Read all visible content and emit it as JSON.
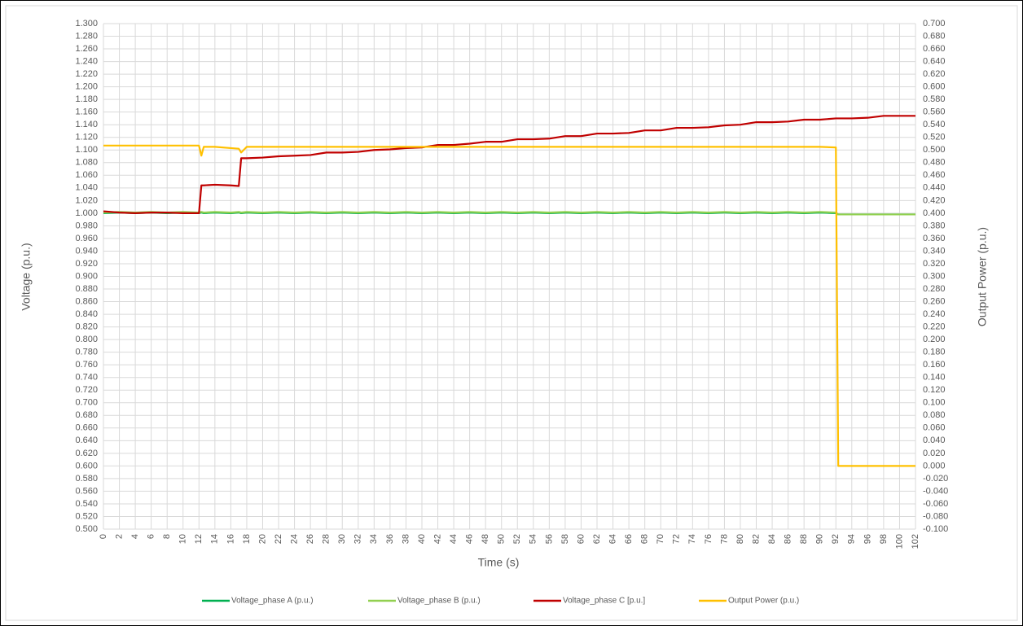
{
  "chart_data": {
    "type": "line",
    "xlabel": "Time (s)",
    "ylabel": "Voltage (p.u.)",
    "y2label": "Output Power (p.u.)",
    "grid": true,
    "legend": "bottom",
    "xlim": [
      0,
      102
    ],
    "xticks": [
      0,
      2,
      4,
      6,
      8,
      10,
      12,
      14,
      16,
      18,
      20,
      22,
      24,
      26,
      28,
      30,
      32,
      34,
      36,
      38,
      40,
      42,
      44,
      46,
      48,
      50,
      52,
      54,
      56,
      58,
      60,
      62,
      64,
      66,
      68,
      70,
      72,
      74,
      76,
      78,
      80,
      82,
      84,
      86,
      88,
      90,
      92,
      94,
      96,
      98,
      100,
      102
    ],
    "ylim": [
      0.5,
      1.3
    ],
    "yticks": [
      {
        "value": 0.5,
        "label": "0.500"
      },
      {
        "value": 0.52,
        "label": "0.520"
      },
      {
        "value": 0.54,
        "label": "0.540"
      },
      {
        "value": 0.56,
        "label": "0.560"
      },
      {
        "value": 0.58,
        "label": "0.580"
      },
      {
        "value": 0.6,
        "label": "0.600"
      },
      {
        "value": 0.62,
        "label": "0.620"
      },
      {
        "value": 0.64,
        "label": "0.640"
      },
      {
        "value": 0.66,
        "label": "0.660"
      },
      {
        "value": 0.68,
        "label": "0.680"
      },
      {
        "value": 0.7,
        "label": "0.700"
      },
      {
        "value": 0.72,
        "label": "0.720"
      },
      {
        "value": 0.74,
        "label": "0.740"
      },
      {
        "value": 0.76,
        "label": "0.760"
      },
      {
        "value": 0.78,
        "label": "0.780"
      },
      {
        "value": 0.8,
        "label": "0.800"
      },
      {
        "value": 0.82,
        "label": "0.820"
      },
      {
        "value": 0.84,
        "label": "0.840"
      },
      {
        "value": 0.86,
        "label": "0.860"
      },
      {
        "value": 0.88,
        "label": "0.880"
      },
      {
        "value": 0.9,
        "label": "0.900"
      },
      {
        "value": 0.92,
        "label": "0.920"
      },
      {
        "value": 0.94,
        "label": "0.940"
      },
      {
        "value": 0.96,
        "label": "0.960"
      },
      {
        "value": 0.98,
        "label": "0.980"
      },
      {
        "value": 1,
        "label": "1.000"
      },
      {
        "value": 1.02,
        "label": "1.020"
      },
      {
        "value": 1.04,
        "label": "1.040"
      },
      {
        "value": 1.06,
        "label": "1.060"
      },
      {
        "value": 1.08,
        "label": "1.080"
      },
      {
        "value": 1.1,
        "label": "1.100"
      },
      {
        "value": 1.12,
        "label": "1.120"
      },
      {
        "value": 1.14,
        "label": "1.140"
      },
      {
        "value": 1.16,
        "label": "1.160"
      },
      {
        "value": 1.18,
        "label": "1.180"
      },
      {
        "value": 1.2,
        "label": "1.200"
      },
      {
        "value": 1.22,
        "label": "1.220"
      },
      {
        "value": 1.24,
        "label": "1.240"
      },
      {
        "value": 1.26,
        "label": "1.260"
      },
      {
        "value": 1.28,
        "label": "1.280"
      },
      {
        "value": 1.3,
        "label": "1.300"
      }
    ],
    "y2lim": [
      -0.1,
      0.7
    ],
    "y2ticks": [
      {
        "value": -0.1,
        "label": "-0.100"
      },
      {
        "value": -0.08,
        "label": "-0.080"
      },
      {
        "value": -0.06,
        "label": "-0.060"
      },
      {
        "value": -0.04,
        "label": "-0.040"
      },
      {
        "value": -0.02,
        "label": "-0.020"
      },
      {
        "value": 0,
        "label": "0.000"
      },
      {
        "value": 0.02,
        "label": "0.020"
      },
      {
        "value": 0.04,
        "label": "0.040"
      },
      {
        "value": 0.06,
        "label": "0.060"
      },
      {
        "value": 0.08,
        "label": "0.080"
      },
      {
        "value": 0.1,
        "label": "0.100"
      },
      {
        "value": 0.12,
        "label": "0.120"
      },
      {
        "value": 0.14,
        "label": "0.140"
      },
      {
        "value": 0.16,
        "label": "0.160"
      },
      {
        "value": 0.18,
        "label": "0.180"
      },
      {
        "value": 0.2,
        "label": "0.200"
      },
      {
        "value": 0.22,
        "label": "0.220"
      },
      {
        "value": 0.24,
        "label": "0.240"
      },
      {
        "value": 0.26,
        "label": "0.260"
      },
      {
        "value": 0.28,
        "label": "0.280"
      },
      {
        "value": 0.3,
        "label": "0.300"
      },
      {
        "value": 0.32,
        "label": "0.320"
      },
      {
        "value": 0.34,
        "label": "0.340"
      },
      {
        "value": 0.36,
        "label": "0.360"
      },
      {
        "value": 0.38,
        "label": "0.380"
      },
      {
        "value": 0.4,
        "label": "0.400"
      },
      {
        "value": 0.42,
        "label": "0.420"
      },
      {
        "value": 0.44,
        "label": "0.440"
      },
      {
        "value": 0.46,
        "label": "0.460"
      },
      {
        "value": 0.48,
        "label": "0.480"
      },
      {
        "value": 0.5,
        "label": "0.500"
      },
      {
        "value": 0.52,
        "label": "0.520"
      },
      {
        "value": 0.54,
        "label": "0.540"
      },
      {
        "value": 0.56,
        "label": "0.560"
      },
      {
        "value": 0.58,
        "label": "0.580"
      },
      {
        "value": 0.6,
        "label": "0.600"
      },
      {
        "value": 0.62,
        "label": "0.620"
      },
      {
        "value": 0.64,
        "label": "0.640"
      },
      {
        "value": 0.66,
        "label": "0.660"
      },
      {
        "value": 0.68,
        "label": "0.680"
      },
      {
        "value": 0.7,
        "label": "0.700"
      }
    ],
    "x": [
      0,
      2,
      4,
      6,
      8,
      10,
      12,
      12.3,
      12.6,
      14,
      16,
      17,
      17.3,
      18,
      20,
      22,
      24,
      26,
      28,
      30,
      32,
      34,
      36,
      38,
      40,
      42,
      44,
      46,
      48,
      50,
      52,
      54,
      56,
      58,
      60,
      62,
      64,
      66,
      68,
      70,
      72,
      74,
      76,
      78,
      80,
      82,
      84,
      86,
      88,
      90,
      92,
      92.3,
      94,
      96,
      98,
      100,
      102
    ],
    "series": [
      {
        "name": "Voltage_phase A (p.u.)",
        "color": "#00b050",
        "values": [
          1.0,
          1.001,
          1.0,
          1.001,
          1.0,
          1.001,
          1.0,
          1.001,
          1.0,
          1.001,
          1.0,
          1.001,
          1.0,
          1.001,
          1.0,
          1.001,
          1.0,
          1.001,
          1.0,
          1.001,
          1.0,
          1.001,
          1.0,
          1.001,
          1.0,
          1.001,
          1.0,
          1.001,
          1.0,
          1.001,
          1.0,
          1.001,
          1.0,
          1.001,
          1.0,
          1.001,
          1.0,
          1.001,
          1.0,
          1.001,
          1.0,
          1.001,
          1.0,
          1.001,
          1.0,
          1.001,
          1.0,
          1.001,
          1.0,
          1.001,
          1.0,
          0.998,
          0.998,
          0.998,
          0.998,
          0.998,
          0.998
        ]
      },
      {
        "name": "Voltage_phase B (p.u.)",
        "color": "#92d050",
        "values": [
          1.001,
          1.002,
          1.001,
          1.002,
          1.001,
          1.002,
          1.001,
          1.002,
          1.001,
          1.002,
          1.001,
          1.002,
          1.001,
          1.002,
          1.001,
          1.002,
          1.001,
          1.002,
          1.001,
          1.002,
          1.001,
          1.002,
          1.001,
          1.002,
          1.001,
          1.002,
          1.001,
          1.002,
          1.001,
          1.002,
          1.001,
          1.002,
          1.001,
          1.002,
          1.001,
          1.002,
          1.001,
          1.002,
          1.001,
          1.002,
          1.001,
          1.002,
          1.001,
          1.002,
          1.001,
          1.002,
          1.001,
          1.002,
          1.001,
          1.002,
          1.001,
          0.998,
          0.998,
          0.998,
          0.998,
          0.998,
          0.998
        ]
      },
      {
        "name": "Voltage_phase C [p.u.]",
        "color": "#c00000",
        "values": [
          1.003,
          1.001,
          1.0,
          1.001,
          1.001,
          1.0,
          1.0,
          1.044,
          1.044,
          1.045,
          1.044,
          1.043,
          1.087,
          1.087,
          1.088,
          1.09,
          1.091,
          1.092,
          1.096,
          1.096,
          1.097,
          1.1,
          1.101,
          1.103,
          1.104,
          1.108,
          1.108,
          1.11,
          1.113,
          1.113,
          1.117,
          1.117,
          1.118,
          1.122,
          1.122,
          1.126,
          1.126,
          1.127,
          1.131,
          1.131,
          1.135,
          1.135,
          1.136,
          1.139,
          1.14,
          1.144,
          1.144,
          1.145,
          1.148,
          1.148,
          1.15,
          1.15,
          1.15,
          1.151,
          1.154,
          1.154,
          1.154
        ]
      },
      {
        "name": "Output Power (p.u.)",
        "color": "#ffc000",
        "axis": "y2",
        "values": [
          0.507,
          0.507,
          0.507,
          0.507,
          0.507,
          0.507,
          0.507,
          0.491,
          0.505,
          0.505,
          0.503,
          0.502,
          0.496,
          0.505,
          0.505,
          0.505,
          0.505,
          0.505,
          0.505,
          0.505,
          0.505,
          0.505,
          0.505,
          0.505,
          0.505,
          0.505,
          0.505,
          0.505,
          0.505,
          0.505,
          0.505,
          0.505,
          0.505,
          0.505,
          0.505,
          0.505,
          0.505,
          0.505,
          0.505,
          0.505,
          0.505,
          0.505,
          0.505,
          0.505,
          0.505,
          0.505,
          0.505,
          0.505,
          0.505,
          0.505,
          0.504,
          0,
          0,
          0,
          0,
          0,
          0
        ]
      }
    ]
  }
}
